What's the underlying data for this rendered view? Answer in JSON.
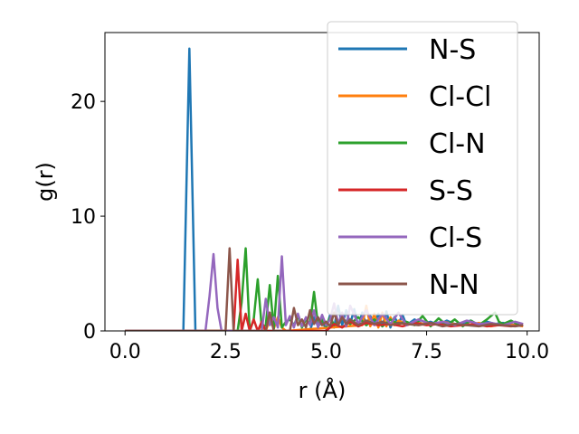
{
  "chart_data": {
    "type": "line",
    "title": "",
    "xlabel": "r (Å)",
    "ylabel": "g(r)",
    "xlim": [
      -0.5,
      10.3
    ],
    "ylim": [
      0,
      26
    ],
    "xticks": [
      0.0,
      2.5,
      5.0,
      7.5,
      10.0
    ],
    "xtick_labels": [
      "0.0",
      "2.5",
      "5.0",
      "7.5",
      "10.0"
    ],
    "yticks": [
      0,
      10,
      20
    ],
    "ytick_labels": [
      "0",
      "10",
      "20"
    ],
    "grid": false,
    "legend_position": "top-right",
    "series": [
      {
        "name": "N-S",
        "color": "#1f77b4",
        "x": [
          0.0,
          1.35,
          1.45,
          1.6,
          1.75,
          1.85,
          4.6,
          4.7,
          4.8,
          4.9,
          5.0,
          5.1,
          5.2,
          5.3,
          5.4,
          5.5,
          5.6,
          5.7,
          5.8,
          5.9,
          6.0,
          6.1,
          6.2,
          6.3,
          6.4,
          6.5,
          6.6,
          6.7,
          6.8,
          6.9,
          7.0,
          7.2,
          7.4,
          7.6,
          7.8,
          8.0,
          8.2,
          8.4,
          8.6,
          8.8,
          9.0,
          9.2,
          9.4,
          9.6,
          9.8
        ],
        "y": [
          0,
          0,
          0,
          24.6,
          0,
          0,
          0,
          1.2,
          0.4,
          0.8,
          0.2,
          1.4,
          0.3,
          2.2,
          0.5,
          1.8,
          0.6,
          1.9,
          0.4,
          1.6,
          0.5,
          1.3,
          0.6,
          1.5,
          0.4,
          1.7,
          0.3,
          1.2,
          0.6,
          1.4,
          0.5,
          1.0,
          0.6,
          0.8,
          0.5,
          0.9,
          0.6,
          0.7,
          0.9,
          0.5,
          0.8,
          0.6,
          0.7,
          0.5,
          0.6
        ]
      },
      {
        "name": "Cl-Cl",
        "color": "#ff7f0e",
        "x": [
          0.0,
          3.3,
          3.4,
          3.5,
          3.6,
          3.7,
          3.8,
          3.9,
          4.0,
          5.9,
          6.0,
          6.1,
          6.2,
          6.3,
          6.4,
          6.5,
          6.6,
          6.7,
          6.8,
          7.0,
          7.3,
          7.6,
          7.9,
          8.2,
          8.5,
          8.8,
          9.1,
          9.4,
          9.7,
          9.9
        ],
        "y": [
          0,
          0,
          0.5,
          0,
          1.0,
          0.2,
          1.2,
          0.3,
          0,
          0.5,
          2.2,
          0.4,
          1.5,
          0.3,
          1.6,
          0.4,
          1.2,
          0.5,
          0.9,
          0.6,
          0.7,
          0.5,
          0.8,
          0.6,
          0.5,
          0.7,
          0.4,
          0.6,
          0.5,
          0.4
        ]
      },
      {
        "name": "Cl-N",
        "color": "#2ca02c",
        "x": [
          0.0,
          2.8,
          2.9,
          3.0,
          3.1,
          3.2,
          3.3,
          3.4,
          3.5,
          3.6,
          3.7,
          3.8,
          3.9,
          4.0,
          4.1,
          4.2,
          4.3,
          4.4,
          4.5,
          4.6,
          4.7,
          4.8,
          4.9,
          5.0,
          5.1,
          5.2,
          5.4,
          5.6,
          5.8,
          6.0,
          6.2,
          6.4,
          6.6,
          6.8,
          7.0,
          7.2,
          7.4,
          7.6,
          7.8,
          8.0,
          8.2,
          8.4,
          8.6,
          8.8,
          9.0,
          9.2,
          9.3,
          9.4,
          9.6,
          9.8
        ],
        "y": [
          0,
          0,
          2.5,
          7.2,
          0,
          1.0,
          4.5,
          0.3,
          0.5,
          4.0,
          0.2,
          4.8,
          0.3,
          0.8,
          1.0,
          0.5,
          1.3,
          0.3,
          1.0,
          0.6,
          3.4,
          0.5,
          1.0,
          0.4,
          1.2,
          0.5,
          1.1,
          0.6,
          1.2,
          0.5,
          1.0,
          0.4,
          1.0,
          0.6,
          0.8,
          0.5,
          1.3,
          0.4,
          1.1,
          0.5,
          1.0,
          0.4,
          0.9,
          0.5,
          1.0,
          1.6,
          0.8,
          0.6,
          0.9,
          0.5
        ]
      },
      {
        "name": "S-S",
        "color": "#d62728",
        "x": [
          0.0,
          2.7,
          2.8,
          2.9,
          3.0,
          3.1,
          3.2,
          3.3,
          3.4,
          3.5,
          5.0,
          5.2,
          5.4,
          5.6,
          5.8,
          6.0,
          6.3,
          6.6,
          6.9,
          7.2,
          7.5,
          7.8,
          8.1,
          8.4,
          8.7,
          9.0,
          9.3,
          9.6,
          9.9
        ],
        "y": [
          0,
          0,
          6.2,
          0,
          1.5,
          0,
          1.0,
          0,
          0.8,
          0,
          0,
          0.6,
          0.3,
          0.8,
          0.4,
          0.7,
          0.5,
          0.6,
          0.4,
          0.7,
          0.5,
          0.6,
          0.4,
          0.5,
          0.6,
          0.4,
          0.5,
          0.4,
          0.5
        ]
      },
      {
        "name": "Cl-S",
        "color": "#9467bd",
        "x": [
          0.0,
          2.0,
          2.1,
          2.2,
          2.3,
          2.4,
          3.4,
          3.5,
          3.6,
          3.7,
          3.8,
          3.9,
          4.0,
          4.1,
          4.2,
          4.3,
          4.4,
          4.5,
          4.6,
          4.7,
          4.8,
          4.9,
          5.0,
          5.1,
          5.2,
          5.3,
          5.4,
          5.5,
          5.6,
          5.8,
          6.0,
          6.2,
          6.4,
          6.6,
          6.8,
          7.0,
          7.3,
          7.6,
          7.9,
          8.2,
          8.5,
          8.8,
          9.1,
          9.4,
          9.7,
          9.9
        ],
        "y": [
          0,
          0,
          3.0,
          6.7,
          2.0,
          0,
          0,
          2.8,
          0.5,
          1.2,
          0.3,
          6.5,
          0.5,
          1.3,
          0.3,
          1.5,
          0.4,
          1.2,
          0.5,
          1.8,
          0.3,
          1.4,
          0.5,
          1.0,
          2.4,
          0.6,
          1.6,
          0.4,
          2.2,
          0.6,
          1.8,
          0.5,
          1.5,
          0.6,
          1.6,
          0.5,
          1.0,
          0.6,
          0.8,
          0.5,
          0.9,
          0.6,
          0.7,
          0.5,
          0.8,
          0.6
        ]
      },
      {
        "name": "N-N",
        "color": "#8c564b",
        "x": [
          0.0,
          2.5,
          2.6,
          2.7,
          3.5,
          3.6,
          3.7,
          4.1,
          4.2,
          4.3,
          4.4,
          4.5,
          4.6,
          4.7,
          4.8,
          4.9,
          5.0,
          5.1,
          5.2,
          5.3,
          5.4,
          5.5,
          5.6,
          5.8,
          6.0,
          6.2,
          6.4,
          6.6,
          6.8,
          7.0,
          7.3,
          7.6,
          7.9,
          8.2,
          8.5,
          8.8,
          9.1,
          9.4,
          9.7,
          9.9
        ],
        "y": [
          0,
          0,
          7.2,
          0,
          0,
          1.6,
          0,
          0,
          2.0,
          0.5,
          1.0,
          0.3,
          1.8,
          0.6,
          1.2,
          0.5,
          0.8,
          0.4,
          1.6,
          0.5,
          1.2,
          0.6,
          1.0,
          0.5,
          0.9,
          0.6,
          0.8,
          0.5,
          0.7,
          0.6,
          0.5,
          0.7,
          0.4,
          0.6,
          0.5,
          0.4,
          0.6,
          0.5,
          0.4,
          0.5
        ]
      }
    ]
  }
}
